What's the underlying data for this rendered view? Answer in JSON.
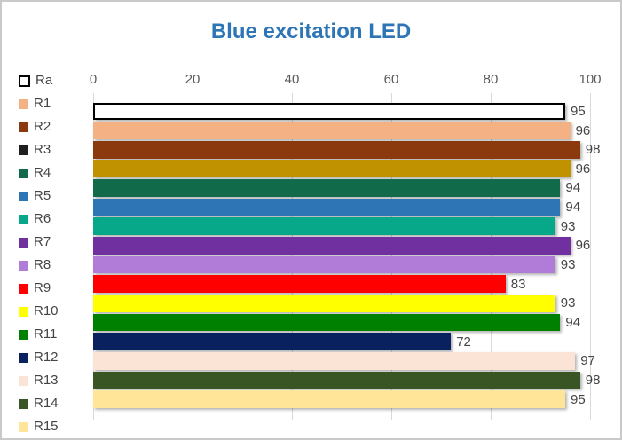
{
  "frame": {
    "background": "#FFFFFF",
    "border_color": "#C9C9C9"
  },
  "styles": {
    "title_color": "#2E75B6",
    "axis_label_color": "#595959",
    "value_label_color": "#444444",
    "legend_label_color": "#444444",
    "grid_color": "#D9D9D9"
  },
  "chart_data": {
    "type": "bar",
    "orientation": "horizontal",
    "title": "Blue excitation LED",
    "xlabel": "",
    "ylabel": "",
    "xlim": [
      0,
      100
    ],
    "x_ticks": [
      0,
      20,
      40,
      60,
      80,
      100
    ],
    "grid": true,
    "legend_position": "left",
    "data_labels": true,
    "categories": [
      "Ra",
      "R1",
      "R2",
      "R3",
      "R4",
      "R5",
      "R6",
      "R7",
      "R8",
      "R9",
      "R10",
      "R11",
      "R12",
      "R13",
      "R14",
      "R15"
    ],
    "values": [
      95,
      96,
      98,
      96,
      94,
      94,
      93,
      96,
      93,
      83,
      93,
      94,
      72,
      97,
      98,
      95
    ],
    "series": [
      {
        "name": "Ra",
        "value": 95,
        "bar_fill": "#FFFFFF",
        "bar_border": "#000000",
        "legend_fill": "#FFFFFF",
        "legend_border": "#000000"
      },
      {
        "name": "R1",
        "value": 96,
        "bar_fill": "#F4B183",
        "legend_fill": "#F4B183"
      },
      {
        "name": "R2",
        "value": 98,
        "bar_fill": "#8B3A0E",
        "legend_fill": "#8B3A0E"
      },
      {
        "name": "R3",
        "value": 96,
        "bar_fill": "#C19200",
        "legend_fill": "#1F1F1F"
      },
      {
        "name": "R4",
        "value": 94,
        "bar_fill": "#116B4B",
        "legend_fill": "#116B4B"
      },
      {
        "name": "R5",
        "value": 94,
        "bar_fill": "#2E75B6",
        "legend_fill": "#2E75B6"
      },
      {
        "name": "R6",
        "value": 93,
        "bar_fill": "#07A78A",
        "legend_fill": "#07A78A"
      },
      {
        "name": "R7",
        "value": 96,
        "bar_fill": "#7030A0",
        "legend_fill": "#7030A0"
      },
      {
        "name": "R8",
        "value": 93,
        "bar_fill": "#B07CD8",
        "legend_fill": "#B07CD8"
      },
      {
        "name": "R9",
        "value": 83,
        "bar_fill": "#FF0000",
        "legend_fill": "#FF0000"
      },
      {
        "name": "R10",
        "value": 93,
        "bar_fill": "#FFFF00",
        "legend_fill": "#FFFF00"
      },
      {
        "name": "R11",
        "value": 94,
        "bar_fill": "#008000",
        "legend_fill": "#008000"
      },
      {
        "name": "R12",
        "value": 72,
        "bar_fill": "#0A215F",
        "legend_fill": "#0A215F"
      },
      {
        "name": "R13",
        "value": 97,
        "bar_fill": "#FBE3D6",
        "legend_fill": "#FBE3D6"
      },
      {
        "name": "R14",
        "value": 98,
        "bar_fill": "#395523",
        "legend_fill": "#395523"
      },
      {
        "name": "R15",
        "value": 95,
        "bar_fill": "#FFE598",
        "legend_fill": "#FFE598"
      }
    ]
  }
}
